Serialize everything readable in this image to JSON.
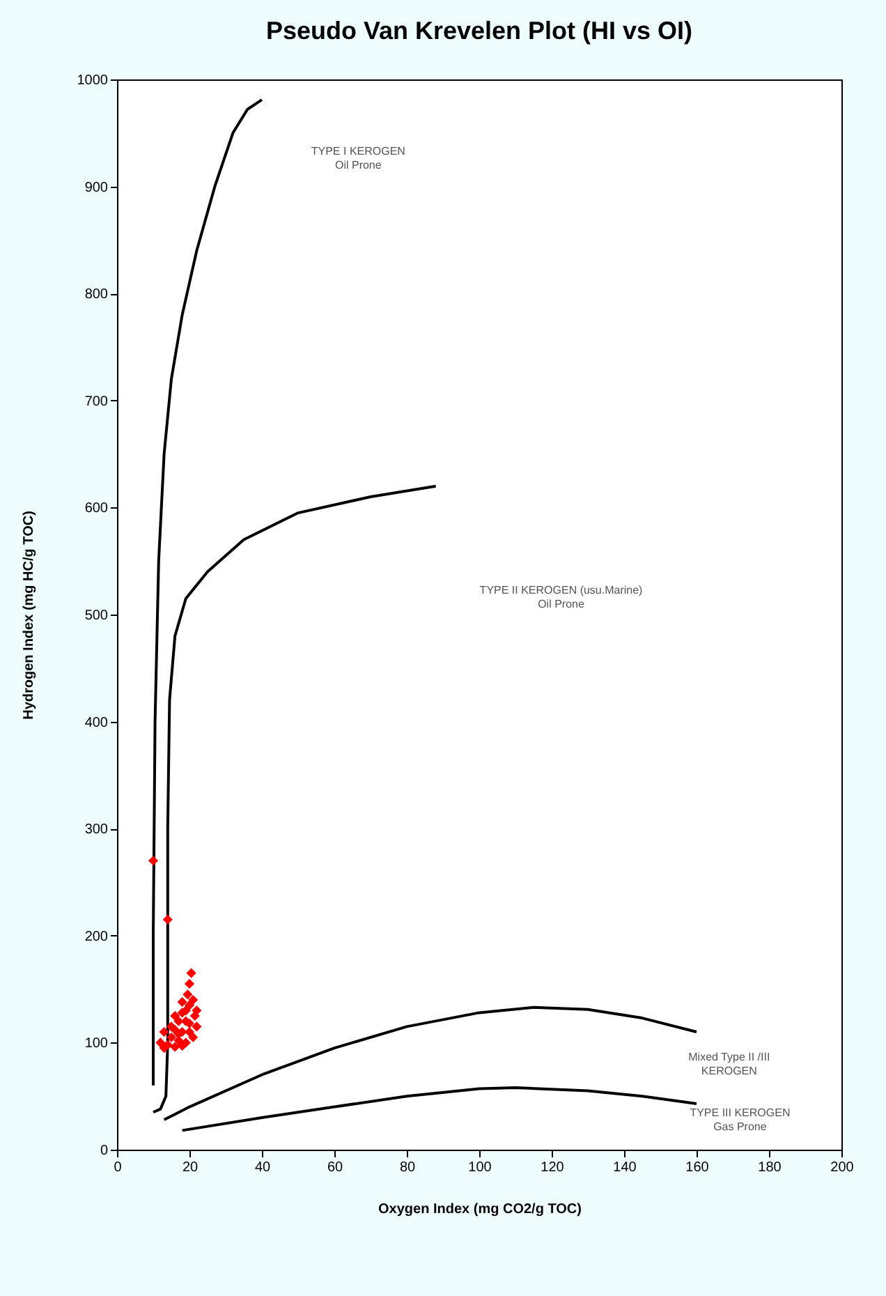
{
  "chart_data": {
    "type": "scatter",
    "title": "Pseudo Van Krevelen Plot (HI vs OI)",
    "xlabel": "Oxygen Index (mg CO2/g TOC)",
    "ylabel": "Hydrogen Index (mg HC/g TOC)",
    "xlim": [
      0,
      200
    ],
    "ylim": [
      0,
      1000
    ],
    "xticks": [
      0,
      20,
      40,
      60,
      80,
      100,
      120,
      140,
      160,
      180,
      200
    ],
    "yticks": [
      0,
      100,
      200,
      300,
      400,
      500,
      600,
      700,
      800,
      900,
      {
        "value": 1000,
        "label": "1000"
      }
    ],
    "grid": false,
    "series": [
      {
        "type": "line",
        "color": "#000000",
        "x": [
          10,
          10,
          10.5,
          11.5,
          13,
          15,
          18,
          22,
          27,
          32,
          36,
          40
        ],
        "values": [
          60,
          200,
          400,
          550,
          650,
          720,
          780,
          840,
          900,
          950,
          972,
          981
        ]
      },
      {
        "type": "line",
        "color": "#000000",
        "x": [
          10,
          12,
          13.5,
          14,
          14,
          14.5,
          16,
          19,
          25,
          35,
          50,
          70,
          88
        ],
        "values": [
          35,
          38,
          50,
          100,
          300,
          420,
          480,
          515,
          540,
          570,
          595,
          610,
          620
        ]
      },
      {
        "type": "line",
        "color": "#000000",
        "x": [
          13,
          20,
          40,
          60,
          80,
          100,
          115,
          130,
          145,
          160
        ],
        "values": [
          28,
          40,
          70,
          95,
          115,
          128,
          133,
          131,
          123,
          110
        ]
      },
      {
        "type": "line",
        "color": "#000000",
        "x": [
          18,
          40,
          60,
          80,
          100,
          110,
          130,
          145,
          160
        ],
        "values": [
          18,
          30,
          40,
          50,
          57,
          58,
          55,
          50,
          43
        ]
      },
      {
        "color": "#ff0000",
        "marker": "diamond",
        "x": [
          10,
          14,
          20.5,
          20,
          19.5,
          21,
          20,
          19,
          18,
          21.5,
          17,
          20,
          22,
          16,
          18,
          13,
          15,
          17,
          19,
          14,
          16,
          18,
          21,
          15,
          17,
          12,
          19,
          16,
          22,
          20,
          18,
          13
        ],
        "values": [
          270,
          215,
          165,
          155,
          145,
          140,
          135,
          130,
          128,
          125,
          120,
          118,
          115,
          112,
          110,
          110,
          105,
          102,
          100,
          98,
          96,
          97,
          105,
          115,
          108,
          100,
          120,
          125,
          130,
          110,
          138,
          95
        ]
      }
    ],
    "annotations": [
      "TYPE I KEROGEN\nOil Prone",
      "TYPE II KEROGEN  (usu.Marine)\nOil Prone",
      "Mixed Type II /III\nKEROGEN",
      "TYPE III KEROGEN\nGas Prone"
    ]
  }
}
